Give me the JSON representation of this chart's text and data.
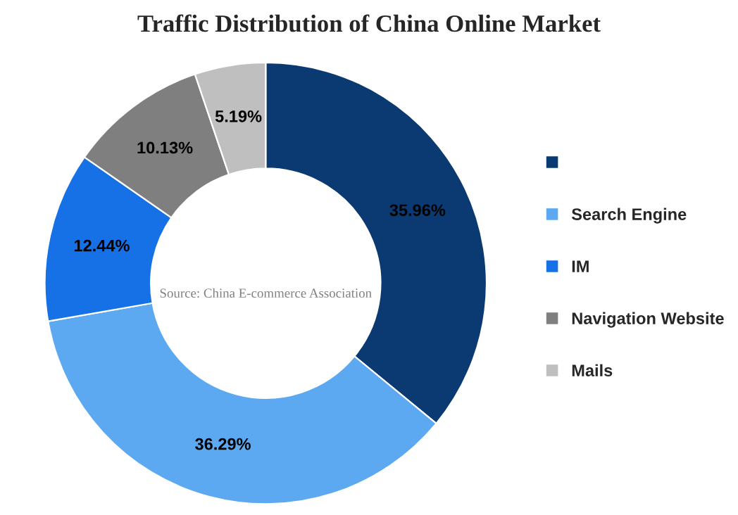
{
  "chart_data": {
    "type": "donut",
    "title": "Traffic Distribution of China Online Market",
    "categories": [
      null,
      "Search Engine",
      "IM",
      "Navigation Website",
      "Mails"
    ],
    "values": [
      35.96,
      36.29,
      12.44,
      10.13,
      5.19
    ],
    "colors": [
      "#0b3a72",
      "#5ca9f2",
      "#1670e6",
      "#7f7f7f",
      "#bfbfbf"
    ],
    "value_labels": [
      "35.96%",
      "36.29%",
      "12.44%",
      "10.13%",
      "5.19%"
    ],
    "annotations": [
      "Source: China E-commerce Association"
    ],
    "legend": "right"
  }
}
